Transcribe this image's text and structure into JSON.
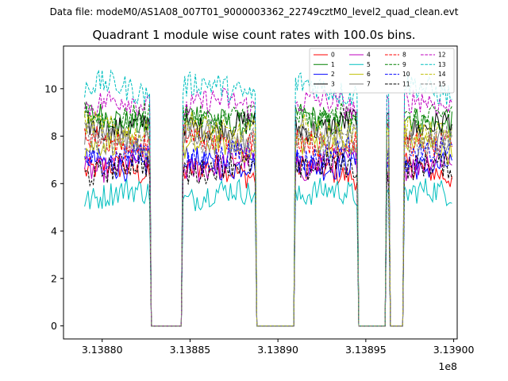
{
  "header": {
    "file_label": "Data file: modeM0/AS1A08_007T01_9000003362_22749cztM0_level2_quad_clean.evt",
    "title": "Quadrant 1 module wise count rates with 100.0s bins."
  },
  "chart_data": {
    "type": "line",
    "title": "Quadrant 1 module wise count rates with 100.0s bins.",
    "xlabel": "",
    "ylabel": "",
    "x_offset_label": "1e8",
    "xlim": [
      313877800,
      313900200
    ],
    "ylim": [
      -0.55,
      11.8
    ],
    "x_ticks": [
      313880000,
      313885000,
      313890000,
      313895000,
      313900000
    ],
    "x_tick_labels": [
      "3.13880",
      "3.13885",
      "3.13890",
      "3.13895",
      "3.13900"
    ],
    "y_ticks": [
      0,
      2,
      4,
      6,
      8,
      10
    ],
    "y_tick_labels": [
      "0",
      "2",
      "4",
      "6",
      "8",
      "10"
    ],
    "legend_position": "top-right",
    "bin_seconds": 100,
    "good_time_intervals": [
      [
        313879000,
        313882700
      ],
      [
        313884600,
        313888700
      ],
      [
        313891000,
        313894500
      ],
      [
        313896200,
        313896300
      ],
      [
        313897200,
        313899900
      ]
    ],
    "series": [
      {
        "name": "0",
        "color": "#ff0000",
        "dash": "solid",
        "level": 6.5
      },
      {
        "name": "1",
        "color": "#008000",
        "dash": "solid",
        "level": 8.7
      },
      {
        "name": "2",
        "color": "#0000ff",
        "dash": "solid",
        "level": 6.9
      },
      {
        "name": "3",
        "color": "#000000",
        "dash": "solid",
        "level": 8.5
      },
      {
        "name": "4",
        "color": "#bf00bf",
        "dash": "solid",
        "level": 6.8
      },
      {
        "name": "5",
        "color": "#00bfbf",
        "dash": "solid",
        "level": 5.5
      },
      {
        "name": "6",
        "color": "#bfbf00",
        "dash": "solid",
        "level": 7.5
      },
      {
        "name": "7",
        "color": "#808080",
        "dash": "solid",
        "level": 8.0
      },
      {
        "name": "8",
        "color": "#ff0000",
        "dash": "dashed",
        "level": 7.8
      },
      {
        "name": "9",
        "color": "#008000",
        "dash": "dashed",
        "level": 8.9
      },
      {
        "name": "10",
        "color": "#0000ff",
        "dash": "dashed",
        "level": 7.2
      },
      {
        "name": "11",
        "color": "#000000",
        "dash": "dashed",
        "level": 6.6
      },
      {
        "name": "12",
        "color": "#bf00bf",
        "dash": "dashed",
        "level": 9.3
      },
      {
        "name": "13",
        "color": "#00bfbf",
        "dash": "dashed",
        "level": 10.0
      },
      {
        "name": "14",
        "color": "#bfbf00",
        "dash": "dashed",
        "level": 8.3
      },
      {
        "name": "15",
        "color": "#808080",
        "dash": "dashed",
        "level": 7.9
      }
    ]
  }
}
